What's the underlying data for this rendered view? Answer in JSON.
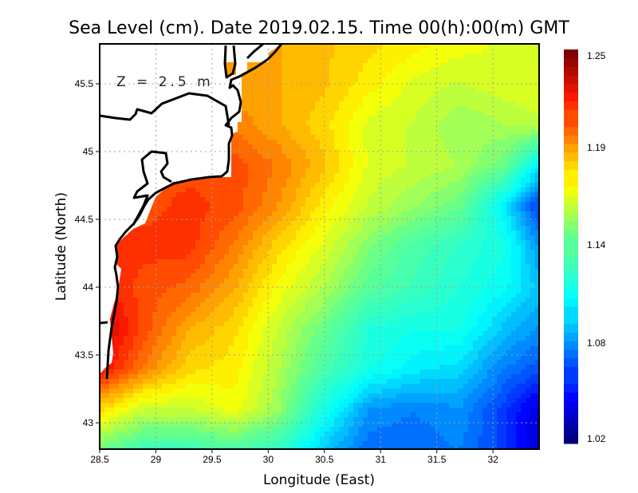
{
  "chart_data": {
    "type": "heatmap",
    "title": "Sea Level (cm). Date 2019.02.15. Time 00(h):00(m) GMT",
    "xlabel": "Longitude (East)",
    "ylabel": "Latitude (North)",
    "annotation": "Z = 2.5 m",
    "xlim": [
      28.5,
      32.41
    ],
    "ylim": [
      42.81,
      45.79
    ],
    "xticks": [
      28.5,
      29,
      29.5,
      30,
      30.5,
      31,
      31.5,
      32
    ],
    "xtick_labels": [
      "28.5",
      "29",
      "29.5",
      "30",
      "30.5",
      "31",
      "31.5",
      "32"
    ],
    "yticks": [
      43,
      43.5,
      44,
      44.5,
      45,
      45.5
    ],
    "ytick_labels": [
      "43",
      "43.5",
      "44",
      "44.5",
      "45",
      "45.5"
    ],
    "grid": true,
    "colorbar": {
      "range": [
        1.02,
        1.25
      ],
      "tick_labels": [
        "1.25",
        "1.19",
        "1.14",
        "1.08",
        "1.02"
      ],
      "placement": "right",
      "colormap": "jet"
    },
    "grid_lon": [
      28.5,
      28.9,
      29.3,
      29.7,
      30.1,
      30.5,
      30.9,
      31.3,
      31.7,
      32.1,
      32.41
    ],
    "grid_lat": [
      45.8,
      45.5,
      45.2,
      44.9,
      44.6,
      44.3,
      44.0,
      43.7,
      43.4,
      43.1,
      42.8
    ],
    "values": [
      [
        1.19,
        1.19,
        1.19,
        1.19,
        1.19,
        1.185,
        1.18,
        1.175,
        1.17,
        1.165,
        1.16
      ],
      [
        1.19,
        1.19,
        1.19,
        1.19,
        1.19,
        1.185,
        1.175,
        1.165,
        1.16,
        1.165,
        1.165
      ],
      [
        1.2,
        1.2,
        1.2,
        1.2,
        1.19,
        1.18,
        1.165,
        1.16,
        1.15,
        1.155,
        1.16
      ],
      [
        1.21,
        1.21,
        1.21,
        1.21,
        1.2,
        1.185,
        1.165,
        1.16,
        1.155,
        1.14,
        1.1
      ],
      [
        1.21,
        1.21,
        1.215,
        1.21,
        1.195,
        1.175,
        1.16,
        1.15,
        1.14,
        1.1,
        1.06
      ],
      [
        1.215,
        1.215,
        1.215,
        1.2,
        1.18,
        1.165,
        1.145,
        1.13,
        1.12,
        1.11,
        1.08
      ],
      [
        1.22,
        1.21,
        1.205,
        1.19,
        1.17,
        1.155,
        1.135,
        1.125,
        1.115,
        1.105,
        1.09
      ],
      [
        1.235,
        1.21,
        1.19,
        1.18,
        1.16,
        1.14,
        1.115,
        1.11,
        1.11,
        1.09,
        1.08
      ],
      [
        1.225,
        1.2,
        1.18,
        1.175,
        1.155,
        1.13,
        1.11,
        1.1,
        1.095,
        1.075,
        1.065
      ],
      [
        1.18,
        1.16,
        1.16,
        1.17,
        1.15,
        1.11,
        1.08,
        1.075,
        1.08,
        1.06,
        1.04
      ],
      [
        1.14,
        1.125,
        1.125,
        1.13,
        1.12,
        1.09,
        1.07,
        1.07,
        1.075,
        1.06,
        1.035
      ]
    ]
  },
  "colors": {
    "land": "#ffffff",
    "coast": "#000000",
    "grid": "#a0a0a0"
  }
}
